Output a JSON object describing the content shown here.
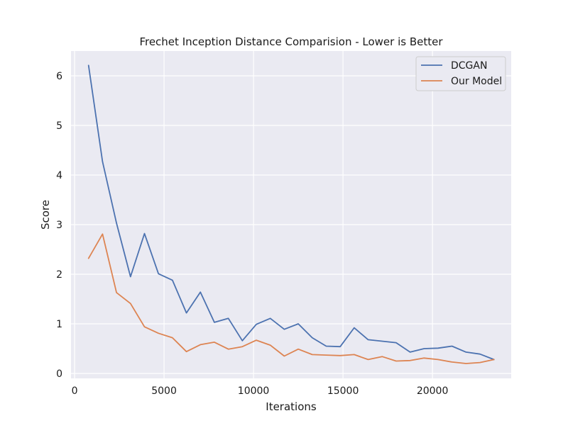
{
  "chart_data": {
    "type": "line",
    "title": "Frechet Inception Distance Comparision - Lower is Better",
    "xlabel": "Iterations",
    "ylabel": "Score",
    "xlim": [
      -200,
      24400
    ],
    "ylim": [
      -0.1,
      6.5
    ],
    "xticks": [
      0,
      5000,
      10000,
      15000,
      20000
    ],
    "yticks": [
      0,
      1,
      2,
      3,
      4,
      5,
      6
    ],
    "grid": true,
    "legend_position": "top-right",
    "x": [
      781,
      1562,
      2343,
      3125,
      3906,
      4687,
      5468,
      6250,
      7031,
      7812,
      8593,
      9375,
      10156,
      10937,
      11718,
      12500,
      13281,
      14062,
      14843,
      15625,
      16406,
      17187,
      17968,
      18750,
      19531,
      20312,
      21093,
      21875,
      22656,
      23437
    ],
    "series": [
      {
        "name": "DCGAN",
        "color": "#4c72b0",
        "values": [
          6.21,
          4.27,
          3.03,
          1.95,
          2.82,
          2.01,
          1.88,
          1.22,
          1.64,
          1.03,
          1.11,
          0.66,
          0.99,
          1.11,
          0.89,
          1.0,
          0.72,
          0.55,
          0.54,
          0.92,
          0.68,
          0.65,
          0.62,
          0.43,
          0.5,
          0.51,
          0.55,
          0.43,
          0.39,
          0.28
        ]
      },
      {
        "name": "Our Model",
        "color": "#dd8452",
        "values": [
          2.32,
          2.81,
          1.63,
          1.41,
          0.94,
          0.81,
          0.72,
          0.44,
          0.58,
          0.63,
          0.49,
          0.54,
          0.67,
          0.57,
          0.35,
          0.49,
          0.38,
          0.37,
          0.36,
          0.38,
          0.28,
          0.34,
          0.25,
          0.26,
          0.31,
          0.28,
          0.23,
          0.2,
          0.22,
          0.28
        ]
      }
    ]
  }
}
